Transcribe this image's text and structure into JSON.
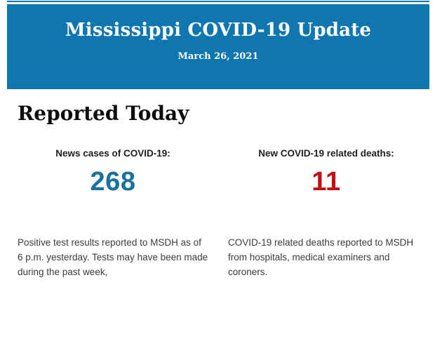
{
  "header": {
    "title": "Mississippi COVID-19 Update",
    "date": "March 26, 2021",
    "background_color": "#0f76b0"
  },
  "section": {
    "title": "Reported Today"
  },
  "stats": [
    {
      "label": "News cases of COVID-19:",
      "value": "268",
      "value_color": "#19719f",
      "description": "Positive test results reported to MSDH as of 6 p.m. yesterday. Tests may have been made during the past week,"
    },
    {
      "label": "New COVID-19 related deaths:",
      "value": "11",
      "value_color": "#bf1015",
      "description": "COVID-19 related deaths reported to MSDH from hospitals, medical examiners and coroners."
    }
  ]
}
